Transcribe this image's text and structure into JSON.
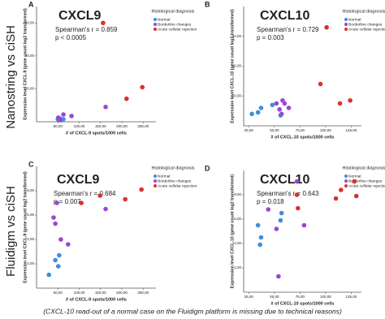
{
  "row_labels": [
    "Nanostring vs ciSH",
    "Fluidigm vs ciSH"
  ],
  "caption": "(CXCL-10 read-out of a normal case on the Fluidigm platform is missing due to technical reasons)",
  "chart_data": [
    {
      "type": "scatter",
      "label": "A",
      "title": "CXCL9",
      "annotations": [
        "Spearman's r = 0.859",
        "p < 0.0005"
      ],
      "xlabel": "# of CXCL-9 spots/1000 cells",
      "ylabel": "Expression level CXCL-9 (gene count log2 transformed)",
      "legend_title": "Histological diagnosis",
      "xlim": [
        0,
        280
      ],
      "ylim": [
        0,
        70
      ],
      "xticks": [
        {
          "value": 50,
          "label": "50,00"
        },
        {
          "value": 100,
          "label": "100,00"
        },
        {
          "value": 150,
          "label": "150,00"
        },
        {
          "value": 200,
          "label": "200,00"
        },
        {
          "value": 250,
          "label": "250,00"
        }
      ],
      "yticks": [
        {
          "value": 20,
          "label": "20,00"
        },
        {
          "value": 40,
          "label": "40,00"
        },
        {
          "value": 60,
          "label": "60,00"
        }
      ],
      "series": [
        {
          "name": "Normal",
          "color": "#3d8fdc",
          "x": [
            50,
            55,
            59,
            63
          ],
          "y": [
            1.5,
            2,
            1,
            1.5
          ]
        },
        {
          "name": "Borderline changes",
          "color": "#9b45d6",
          "x": [
            51,
            55,
            63,
            82,
            162
          ],
          "y": [
            2.5,
            1,
            4.4,
            3.5,
            9
          ]
        },
        {
          "name": "Acute cellular rejection",
          "color": "#d8322f",
          "x": [
            156,
            211,
            248
          ],
          "y": [
            60,
            14,
            21
          ]
        }
      ]
    },
    {
      "type": "scatter",
      "label": "B",
      "title": "CXCL10",
      "annotations": [
        "Spearman's r = 0.729",
        "p = 0.003"
      ],
      "xlabel": "# of CXCL-10 spots/1000 cells",
      "ylabel": "Expression level CXCL-10 (gene count log2 transformed)",
      "legend_title": "Histological diagnosis",
      "xlim": [
        20,
        135
      ],
      "ylim": [
        0,
        80
      ],
      "xticks": [
        {
          "value": 25,
          "label": "25,00"
        },
        {
          "value": 50,
          "label": "50,00"
        },
        {
          "value": 75,
          "label": "75,00"
        },
        {
          "value": 100,
          "label": "100,00"
        },
        {
          "value": 125,
          "label": "125,00"
        }
      ],
      "yticks": [
        {
          "value": 20,
          "label": "20,00"
        },
        {
          "value": 40,
          "label": "40,00"
        },
        {
          "value": 60,
          "label": "60,00"
        }
      ],
      "series": [
        {
          "name": "Normal",
          "color": "#3d8fdc",
          "x": [
            28,
            34,
            37,
            48,
            56
          ],
          "y": [
            8,
            9,
            12,
            14,
            7
          ]
        },
        {
          "name": "Borderline changes",
          "color": "#9b45d6",
          "x": [
            52,
            55,
            57,
            58,
            60,
            64
          ],
          "y": [
            15,
            11,
            8,
            17,
            15,
            12
          ]
        },
        {
          "name": "Acute cellular rejection",
          "color": "#d8322f",
          "x": [
            95,
            101,
            114,
            124
          ],
          "y": [
            28,
            66,
            15,
            17
          ]
        }
      ]
    },
    {
      "type": "scatter",
      "label": "C",
      "title": "CXCL9",
      "annotations": [
        "Spearman's r = 0.684",
        "p = 0.007"
      ],
      "xlabel": "# of CXCL-9 spots/1000 cells",
      "ylabel": "Expression level CXCL-9 (gene count log2 transformed)",
      "legend_title": "Histological diagnosis",
      "xlim": [
        0,
        280
      ],
      "ylim": [
        0,
        10
      ],
      "xticks": [
        {
          "value": 50,
          "label": "50,00"
        },
        {
          "value": 100,
          "label": "100,00"
        },
        {
          "value": 150,
          "label": "150,00"
        },
        {
          "value": 200,
          "label": "200,00"
        },
        {
          "value": 250,
          "label": "250,00"
        }
      ],
      "yticks": [
        {
          "value": 2,
          "label": "2,00"
        },
        {
          "value": 4,
          "label": "4,00"
        },
        {
          "value": 6,
          "label": "6,00"
        },
        {
          "value": 8,
          "label": "8,00"
        }
      ],
      "series": [
        {
          "name": "Normal",
          "color": "#3d8fdc",
          "x": [
            29,
            44,
            51,
            53
          ],
          "y": [
            1.1,
            2.3,
            1.8,
            2.7
          ]
        },
        {
          "name": "Borderline changes",
          "color": "#9b45d6",
          "x": [
            40,
            44,
            48,
            57,
            74,
            162
          ],
          "y": [
            5.8,
            5.3,
            7,
            4,
            3.6,
            6.5
          ]
        },
        {
          "name": "Acute cellular rejection",
          "color": "#d8322f",
          "x": [
            105,
            149,
            208,
            246
          ],
          "y": [
            7,
            7.6,
            7.3,
            8.1
          ]
        }
      ]
    },
    {
      "type": "scatter",
      "label": "D",
      "title": "CXCL10",
      "annotations": [
        "Spearman's r = 0.643",
        "p = 0.018"
      ],
      "xlabel": "# of CXCL-10 spots/1000 cells",
      "ylabel": "Expression level CXCL-10 (gene count log2 transformed)",
      "legend_title": "Histological diagnosis",
      "xlim": [
        20,
        135
      ],
      "ylim": [
        0,
        10
      ],
      "xticks": [
        {
          "value": 25,
          "label": "25,00"
        },
        {
          "value": 50,
          "label": "50,00"
        },
        {
          "value": 75,
          "label": "75,00"
        },
        {
          "value": 100,
          "label": "100,00"
        },
        {
          "value": 125,
          "label": "125,00"
        }
      ],
      "yticks": [
        {
          "value": 2,
          "label": "2,00"
        },
        {
          "value": 4,
          "label": "4,00"
        },
        {
          "value": 6,
          "label": "6,00"
        },
        {
          "value": 8,
          "label": "8,00"
        }
      ],
      "series": [
        {
          "name": "Normal",
          "color": "#3d8fdc",
          "x": [
            34,
            36,
            37,
            56,
            57
          ],
          "y": [
            5.5,
            3.9,
            4.5,
            5.9,
            6.5
          ]
        },
        {
          "name": "Borderline changes",
          "color": "#9b45d6",
          "x": [
            44,
            52,
            54,
            72,
            79
          ],
          "y": [
            6.8,
            5.2,
            1.3,
            9.1,
            5.5
          ]
        },
        {
          "name": "Acute cellular rejection",
          "color": "#d8322f",
          "x": [
            72,
            73,
            110,
            115,
            128,
            130
          ],
          "y": [
            8,
            6.9,
            7.7,
            8.4,
            9.1,
            7.9
          ]
        }
      ]
    }
  ]
}
